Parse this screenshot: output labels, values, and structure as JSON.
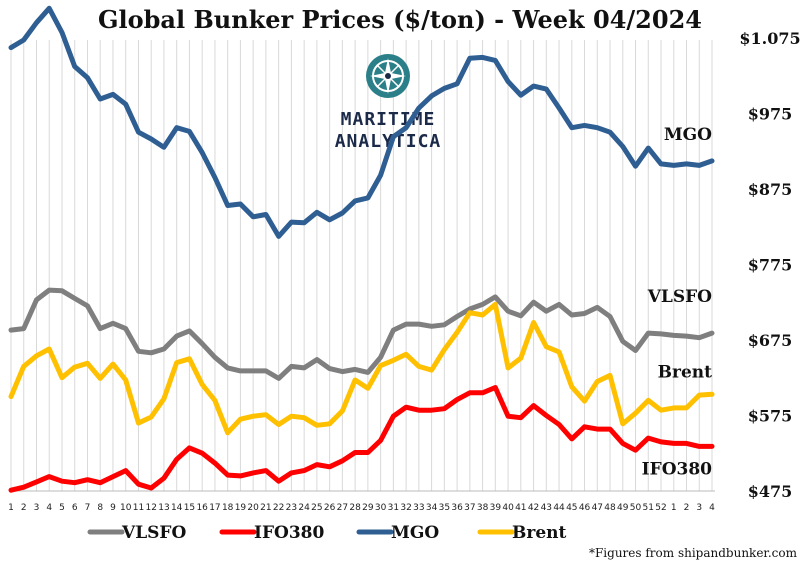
{
  "chart_data": {
    "type": "line",
    "title": "Global Bunker Prices ($/ton) -  Week 04/2024",
    "categories": [
      "1",
      "2",
      "3",
      "4",
      "5",
      "6",
      "7",
      "8",
      "9",
      "10",
      "11",
      "12",
      "13",
      "14",
      "15",
      "16",
      "17",
      "18",
      "19",
      "20",
      "21",
      "22",
      "23",
      "24",
      "25",
      "26",
      "27",
      "28",
      "29",
      "30",
      "31",
      "32",
      "33",
      "34",
      "35",
      "36",
      "37",
      "38",
      "39",
      "40",
      "41",
      "42",
      "43",
      "44",
      "45",
      "46",
      "47",
      "48",
      "49",
      "50",
      "51",
      "52",
      "1",
      "2",
      "3",
      "4"
    ],
    "ylim": [
      475,
      1125
    ],
    "yticks": [
      475,
      575,
      675,
      775,
      875,
      975,
      1075
    ],
    "ytick_labels": [
      "$475",
      "$575",
      "$675",
      "$775",
      "$875",
      "$975",
      "$1.075"
    ],
    "series": [
      {
        "name": "VLSFO",
        "color": "#7f7f7f",
        "values": [
          688,
          690,
          728,
          741,
          740,
          730,
          720,
          690,
          697,
          690,
          660,
          658,
          663,
          680,
          687,
          670,
          652,
          638,
          634,
          634,
          634,
          624,
          640,
          638,
          649,
          637,
          633,
          636,
          632,
          652,
          688,
          696,
          696,
          693,
          695,
          706,
          716,
          722,
          732,
          713,
          707,
          725,
          713,
          722,
          708,
          710,
          718,
          706,
          673,
          661,
          684,
          683,
          681,
          680,
          678,
          684
        ]
      },
      {
        "name": "IFO380",
        "color": "#ff0000",
        "values": [
          476,
          480,
          487,
          494,
          488,
          486,
          490,
          486,
          494,
          502,
          484,
          479,
          492,
          517,
          532,
          525,
          512,
          496,
          495,
          499,
          502,
          488,
          499,
          502,
          510,
          507,
          515,
          526,
          526,
          542,
          574,
          586,
          582,
          582,
          584,
          596,
          605,
          605,
          612,
          574,
          572,
          588,
          575,
          563,
          544,
          560,
          557,
          557,
          538,
          529,
          545,
          540,
          538,
          538,
          534,
          534
        ]
      },
      {
        "name": "MGO",
        "color": "#2e5e92",
        "values": [
          1062,
          1072,
          1095,
          1114,
          1082,
          1037,
          1022,
          994,
          1000,
          987,
          950,
          941,
          930,
          956,
          951,
          923,
          890,
          853,
          855,
          838,
          841,
          812,
          831,
          830,
          844,
          834,
          843,
          859,
          863,
          893,
          944,
          956,
          982,
          998,
          1008,
          1014,
          1048,
          1049,
          1045,
          1017,
          999,
          1011,
          1007,
          982,
          956,
          959,
          956,
          950,
          931,
          905,
          929,
          908,
          906,
          908,
          906,
          912
        ]
      },
      {
        "name": "Brent",
        "color": "#ffc000",
        "values": [
          600,
          640,
          654,
          663,
          625,
          639,
          644,
          624,
          643,
          622,
          565,
          573,
          597,
          645,
          650,
          616,
          595,
          552,
          570,
          574,
          576,
          563,
          574,
          572,
          562,
          564,
          581,
          622,
          611,
          641,
          648,
          656,
          640,
          635,
          662,
          685,
          711,
          708,
          722,
          638,
          651,
          698,
          666,
          659,
          613,
          594,
          620,
          628,
          564,
          578,
          595,
          582,
          585,
          585,
          602,
          603
        ]
      }
    ],
    "end_labels": [
      "MGO",
      "VLSFO",
      "Brent",
      "IFO380"
    ]
  },
  "logo": {
    "line1": "MARITIME",
    "line2": "ANALYTICA",
    "icon": "compass-icon"
  },
  "source_note": "*Figures from shipandbunker.com"
}
